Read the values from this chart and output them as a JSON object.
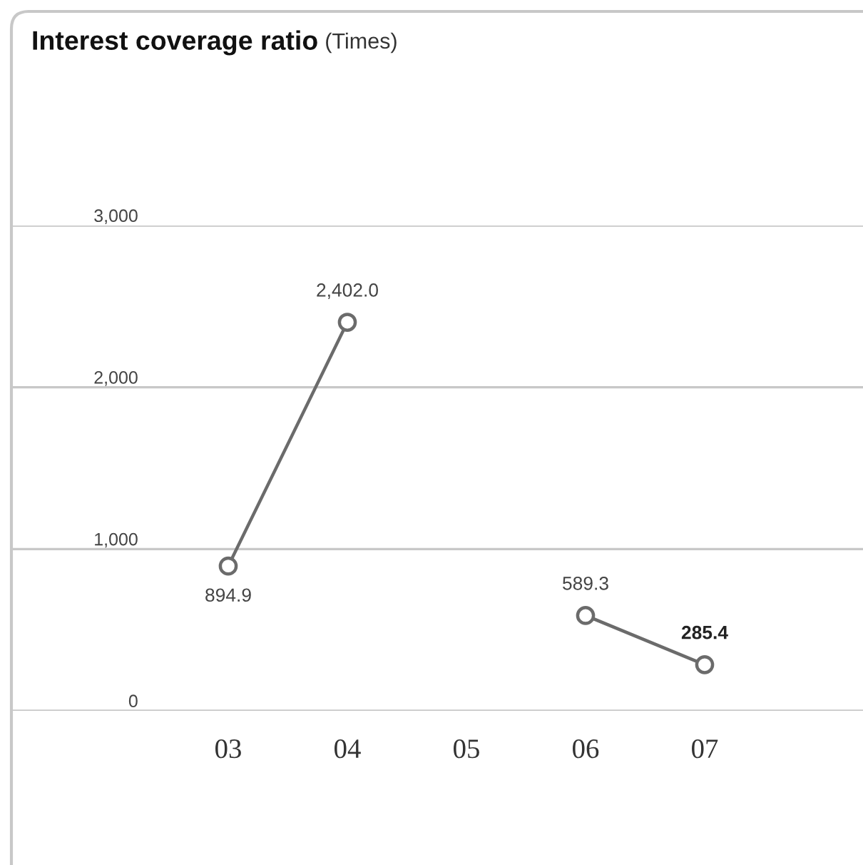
{
  "chart_data": {
    "type": "line",
    "title": "Interest coverage ratio",
    "subtitle": "(Times)",
    "categories": [
      "03",
      "04",
      "05",
      "06",
      "07"
    ],
    "series": [
      {
        "color": "#6b6b6b",
        "values": [
          894.9,
          2402.0,
          null,
          589.3,
          285.4
        ],
        "value_labels": [
          "894.9",
          "2,402.0",
          null,
          "589.3",
          "285.4"
        ]
      }
    ],
    "ylim": [
      0,
      3000
    ],
    "yticks": [
      {
        "value": 0,
        "label": "0"
      },
      {
        "value": 1000,
        "label": "1,000"
      },
      {
        "value": 2000,
        "label": "2,000"
      },
      {
        "value": 3000,
        "label": "3,000"
      }
    ],
    "grid": "y",
    "marker": "circle",
    "line_style": "solid"
  }
}
